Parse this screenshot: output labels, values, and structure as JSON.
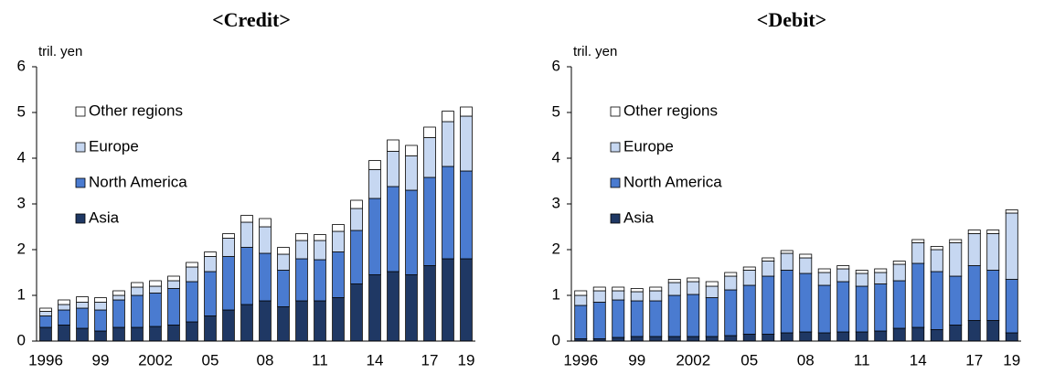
{
  "chart_data": [
    {
      "type": "bar",
      "stacked": true,
      "title": "<Credit>",
      "ylabel": "tril. yen",
      "categories": [
        "1996",
        null,
        null,
        "99",
        null,
        null,
        "2002",
        null,
        null,
        "05",
        null,
        null,
        "08",
        null,
        null,
        "11",
        null,
        null,
        "14",
        null,
        null,
        "17",
        null,
        "19"
      ],
      "series": [
        {
          "name": "Asia",
          "color": "#1f3864",
          "values": [
            0.3,
            0.35,
            0.28,
            0.22,
            0.3,
            0.3,
            0.32,
            0.35,
            0.42,
            0.55,
            0.68,
            0.8,
            0.88,
            0.75,
            0.88,
            0.88,
            0.95,
            1.25,
            1.45,
            1.52,
            1.45,
            1.65,
            1.8,
            1.8
          ]
        },
        {
          "name": "North America",
          "color": "#4a7bd0",
          "values": [
            0.25,
            0.33,
            0.44,
            0.46,
            0.6,
            0.7,
            0.73,
            0.8,
            0.88,
            0.97,
            1.17,
            1.25,
            1.04,
            0.8,
            0.92,
            0.9,
            1.0,
            1.17,
            1.67,
            1.86,
            1.85,
            1.93,
            2.02,
            1.92
          ]
        },
        {
          "name": "Europe",
          "color": "#c6d7f1",
          "values": [
            0.1,
            0.12,
            0.13,
            0.17,
            0.1,
            0.18,
            0.15,
            0.17,
            0.32,
            0.33,
            0.4,
            0.55,
            0.58,
            0.35,
            0.4,
            0.42,
            0.45,
            0.48,
            0.63,
            0.77,
            0.75,
            0.87,
            0.98,
            1.2
          ]
        },
        {
          "name": "Other regions",
          "color": "#ffffff",
          "values": [
            0.07,
            0.1,
            0.12,
            0.1,
            0.1,
            0.1,
            0.12,
            0.1,
            0.1,
            0.1,
            0.1,
            0.15,
            0.18,
            0.15,
            0.15,
            0.13,
            0.15,
            0.18,
            0.2,
            0.25,
            0.23,
            0.23,
            0.23,
            0.2
          ]
        }
      ],
      "ylim": [
        0,
        6
      ],
      "yticks": [
        0,
        1,
        2,
        3,
        4,
        5,
        6
      ],
      "legend": "upper left"
    },
    {
      "type": "bar",
      "stacked": true,
      "title": "<Debit>",
      "ylabel": "tril. yen",
      "categories": [
        "1996",
        null,
        null,
        "99",
        null,
        null,
        "2002",
        null,
        null,
        "05",
        null,
        null,
        "08",
        null,
        null,
        "11",
        null,
        null,
        "14",
        null,
        null,
        "17",
        null,
        "19"
      ],
      "series": [
        {
          "name": "Asia",
          "color": "#1f3864",
          "values": [
            0.05,
            0.05,
            0.08,
            0.1,
            0.1,
            0.1,
            0.1,
            0.1,
            0.12,
            0.15,
            0.15,
            0.18,
            0.2,
            0.18,
            0.2,
            0.2,
            0.22,
            0.28,
            0.3,
            0.25,
            0.35,
            0.45,
            0.45,
            0.18
          ]
        },
        {
          "name": "North America",
          "color": "#4a7bd0",
          "values": [
            0.73,
            0.8,
            0.82,
            0.78,
            0.78,
            0.9,
            0.92,
            0.85,
            1.0,
            1.07,
            1.27,
            1.37,
            1.28,
            1.04,
            1.1,
            1.0,
            1.03,
            1.04,
            1.4,
            1.27,
            1.07,
            1.2,
            1.1,
            1.17
          ]
        },
        {
          "name": "Europe",
          "color": "#c6d7f1",
          "values": [
            0.22,
            0.25,
            0.2,
            0.2,
            0.22,
            0.28,
            0.28,
            0.25,
            0.3,
            0.33,
            0.33,
            0.37,
            0.34,
            0.28,
            0.28,
            0.28,
            0.25,
            0.36,
            0.45,
            0.48,
            0.73,
            0.7,
            0.8,
            1.45
          ]
        },
        {
          "name": "Other regions",
          "color": "#ffffff",
          "values": [
            0.1,
            0.08,
            0.08,
            0.07,
            0.08,
            0.07,
            0.08,
            0.1,
            0.08,
            0.07,
            0.07,
            0.06,
            0.08,
            0.08,
            0.07,
            0.07,
            0.08,
            0.07,
            0.07,
            0.07,
            0.07,
            0.08,
            0.08,
            0.07
          ]
        }
      ],
      "ylim": [
        0,
        6
      ],
      "yticks": [
        0,
        1,
        2,
        3,
        4,
        5,
        6
      ],
      "legend": "upper left"
    }
  ]
}
